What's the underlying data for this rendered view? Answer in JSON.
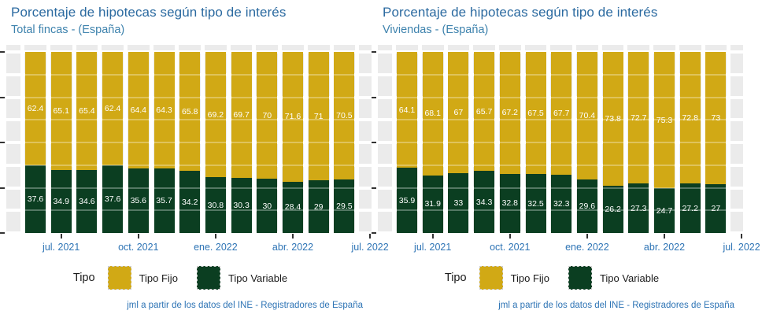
{
  "window": {
    "background": "#ffffff"
  },
  "colors": {
    "tipo_fijo": "#d1a915",
    "tipo_variable": "#0b3e21",
    "panel_background": "#ebebeb",
    "gridline": "#ffffff",
    "title_text": "#2b6aa0",
    "subtitle_text": "#3d82ad",
    "axis_text": "#2e74b5",
    "caption_text": "#2e74b5",
    "legend_text": "#1a1a1a",
    "bar_label_text": "#ffffff",
    "tick_mark": "#333333"
  },
  "legend": {
    "title": "Tipo",
    "items": [
      {
        "label": "Tipo Fijo",
        "color": "#d1a915"
      },
      {
        "label": "Tipo Variable",
        "color": "#0b3e21"
      }
    ]
  },
  "caption": "jml a partir de los datos del INE - Registradores de España",
  "chart_data": [
    {
      "type": "bar",
      "stacked": true,
      "title": "Porcentaje de hipotecas según tipo de interés",
      "subtitle": "Total fincas - (España)",
      "ylim": [
        0,
        100
      ],
      "y_ticks": [
        0,
        25,
        50,
        75,
        100
      ],
      "y_tick_labels_shown": false,
      "grid": true,
      "legend_position": "bottom",
      "n_bars": 13,
      "x_ticks": [
        {
          "label": "jul. 2021",
          "bar_index": 1
        },
        {
          "label": "oct. 2021",
          "bar_index": 4
        },
        {
          "label": "ene. 2022",
          "bar_index": 7
        },
        {
          "label": "abr. 2022",
          "bar_index": 10
        },
        {
          "label": "jul. 2022",
          "bar_index": 13,
          "clipped_at_edge": true
        }
      ],
      "series": [
        {
          "name": "Tipo Fijo",
          "values": [
            62.4,
            65.1,
            65.4,
            62.4,
            64.4,
            64.3,
            65.8,
            69.2,
            69.7,
            70,
            71.6,
            71,
            70.5
          ]
        },
        {
          "name": "Tipo Variable",
          "values": [
            37.6,
            34.9,
            34.6,
            37.6,
            35.6,
            35.7,
            34.2,
            30.8,
            30.3,
            30,
            28.4,
            29,
            29.5
          ]
        }
      ]
    },
    {
      "type": "bar",
      "stacked": true,
      "title": "Porcentaje de hipotecas según tipo de interés",
      "subtitle": "Viviendas - (España)",
      "ylim": [
        0,
        100
      ],
      "y_ticks": [
        0,
        25,
        50,
        75,
        100
      ],
      "y_tick_labels_shown": false,
      "grid": true,
      "legend_position": "bottom",
      "n_bars": 13,
      "x_ticks": [
        {
          "label": "jul. 2021",
          "bar_index": 1
        },
        {
          "label": "oct. 2021",
          "bar_index": 4
        },
        {
          "label": "ene. 2022",
          "bar_index": 7
        },
        {
          "label": "abr. 2022",
          "bar_index": 10
        },
        {
          "label": "jul. 2022",
          "bar_index": 13,
          "clipped_at_edge": true
        }
      ],
      "series": [
        {
          "name": "Tipo Fijo",
          "values": [
            64.1,
            68.1,
            67,
            65.7,
            67.2,
            67.5,
            67.7,
            70.4,
            73.8,
            72.7,
            75.3,
            72.8,
            73
          ]
        },
        {
          "name": "Tipo Variable",
          "values": [
            35.9,
            31.9,
            33,
            34.3,
            32.8,
            32.5,
            32.3,
            29.6,
            26.2,
            27.3,
            24.7,
            27.2,
            27
          ]
        }
      ]
    }
  ]
}
